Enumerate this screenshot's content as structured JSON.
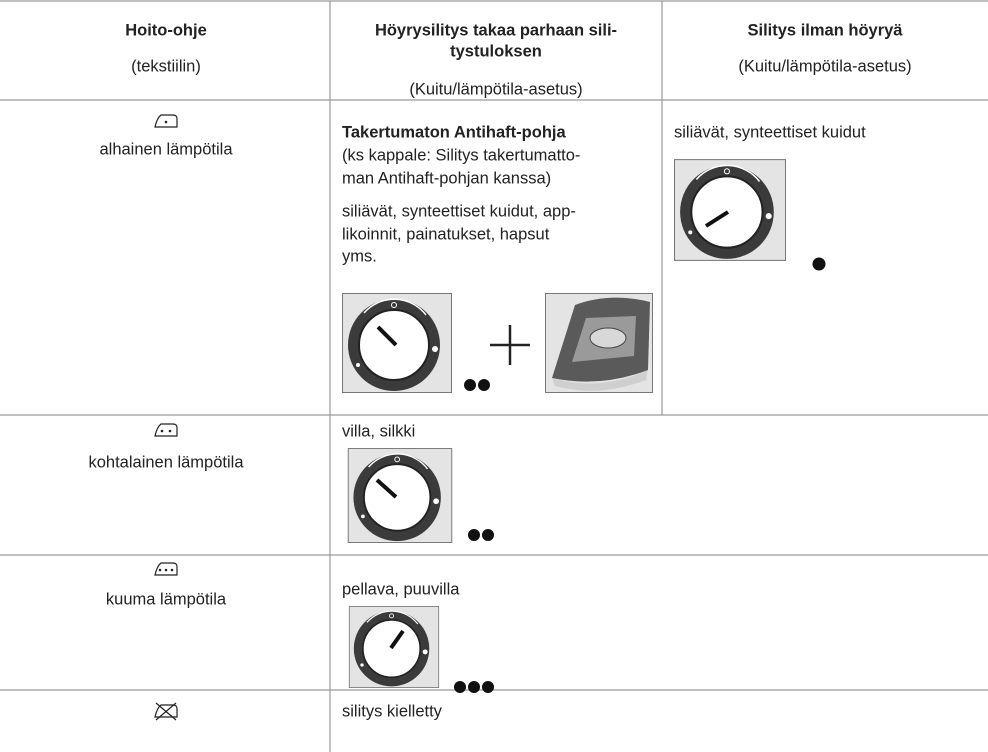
{
  "table": {
    "columns": [
      {
        "title": [
          "Hoito-ohje"
        ],
        "subtitle": "(tekstiilin)"
      },
      {
        "title": [
          "Höyrysilitys takaa parhaan sili-",
          "tystuloksen"
        ],
        "subtitle": "(Kuitu/lämpötila-asetus)"
      },
      {
        "title": [
          "Silitys ilman höyryä"
        ],
        "subtitle": "(Kuitu/lämpötila-asetus)"
      }
    ],
    "rows": [
      {
        "care_label": "alhainen lämpötila",
        "steam": {
          "heading": "Takertumaton Antihaft-pohja",
          "note": [
            "(ks kappale: Silitys takertumatto-",
            "man Antihaft-pohjan kanssa)"
          ],
          "fabrics": [
            "siliävät, synteettiset kuidut, app-",
            "likoinnit, painatukset, hapsut",
            "yms."
          ]
        },
        "dry": {
          "fabrics": [
            "siliävät, synteettiset kuidut"
          ]
        }
      },
      {
        "care_label": "kohtalainen lämpötila",
        "steam": {
          "fabrics": [
            "villa, silkki"
          ]
        }
      },
      {
        "care_label": "kuuma lämpötila",
        "steam": {
          "fabrics": [
            "pellava, puuvilla"
          ]
        }
      },
      {
        "steam": {
          "fabrics": [
            "silitys kielletty"
          ]
        }
      }
    ]
  }
}
